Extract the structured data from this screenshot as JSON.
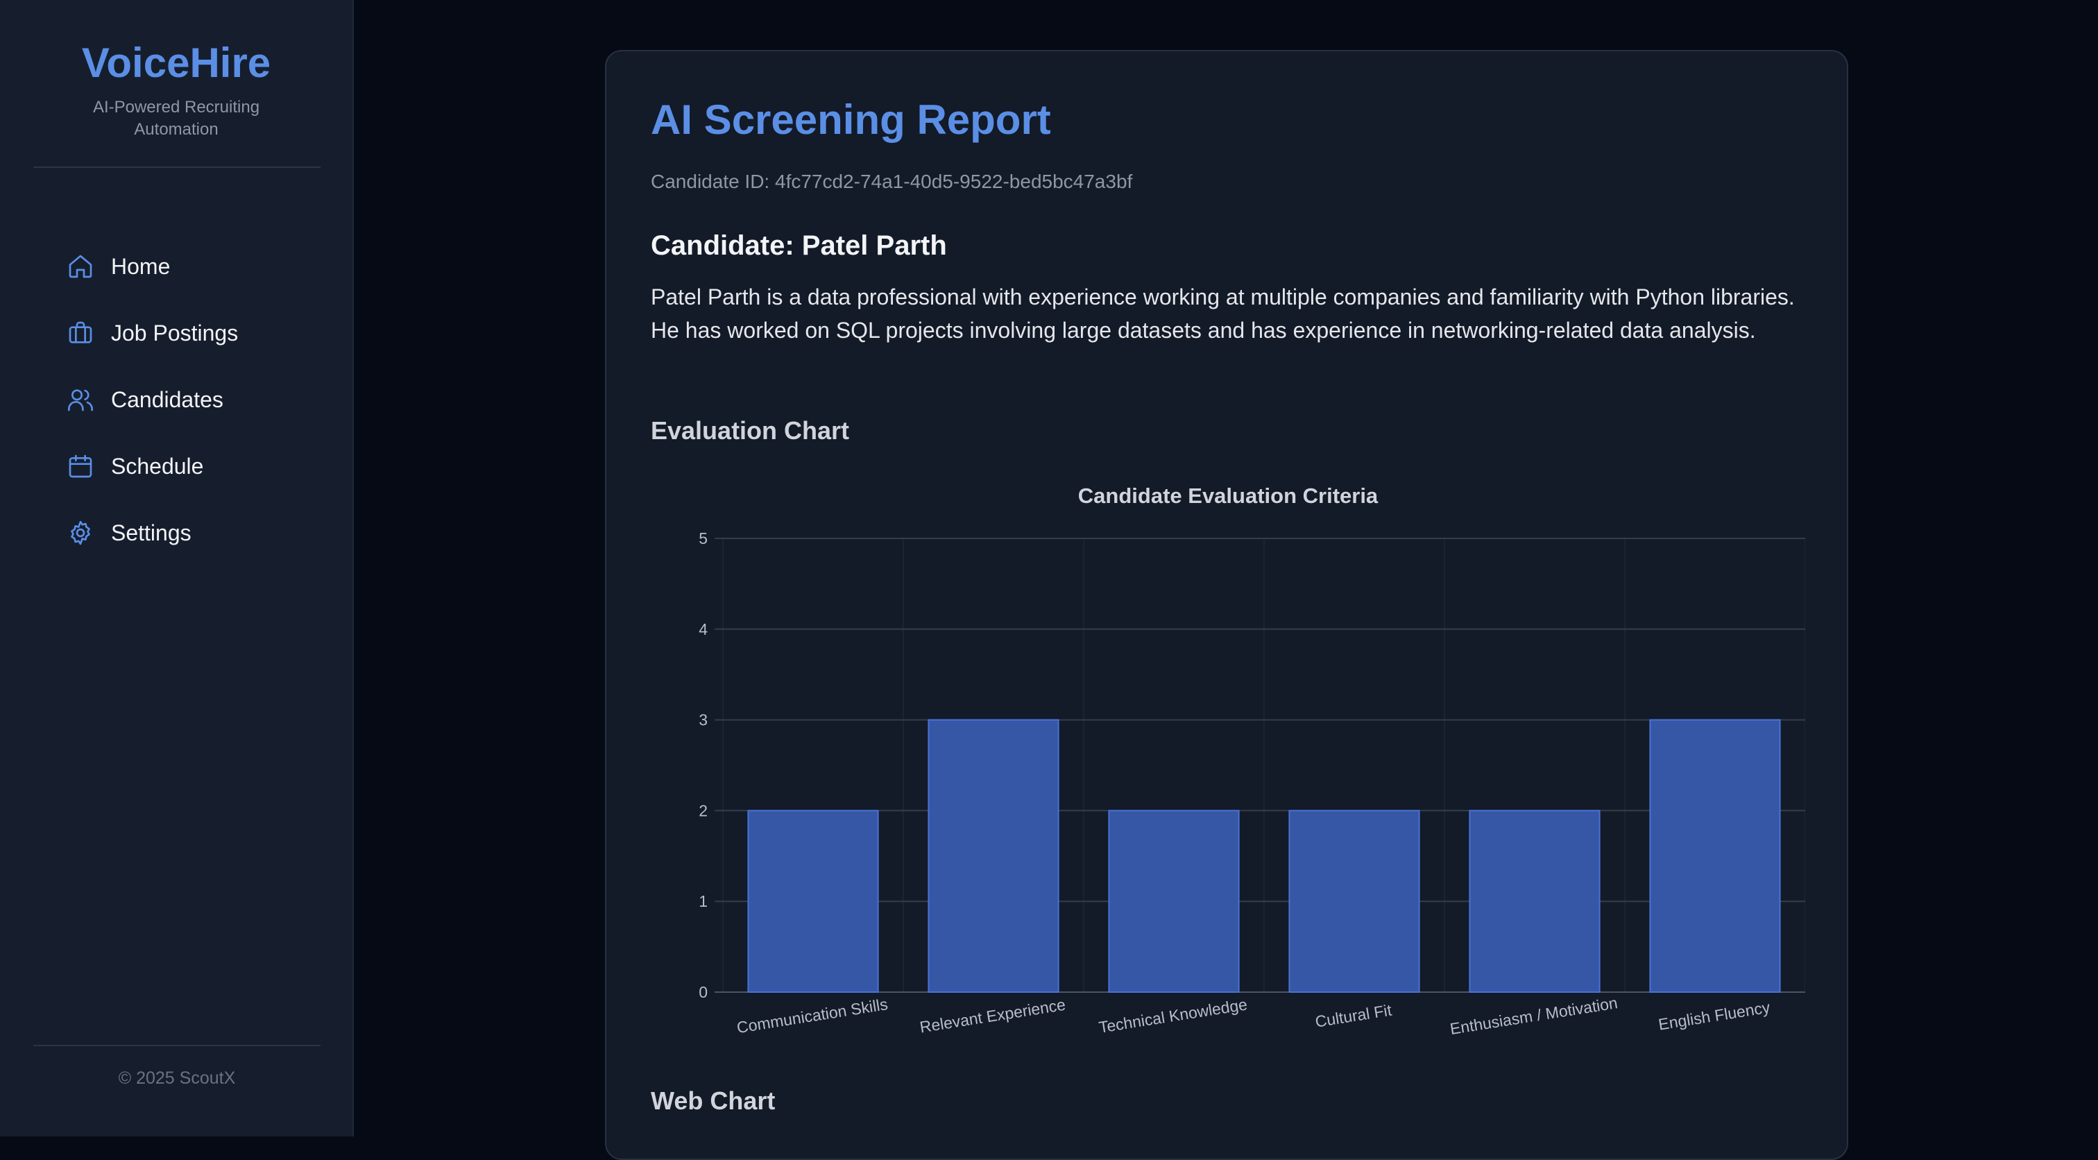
{
  "sidebar": {
    "brand": "VoiceHire",
    "tagline": "AI-Powered Recruiting Automation",
    "items": [
      {
        "label": "Home",
        "icon": "home-icon"
      },
      {
        "label": "Job Postings",
        "icon": "briefcase-icon"
      },
      {
        "label": "Candidates",
        "icon": "users-icon"
      },
      {
        "label": "Schedule",
        "icon": "calendar-icon"
      },
      {
        "label": "Settings",
        "icon": "gear-icon"
      }
    ],
    "footer": "© 2025 ScoutX"
  },
  "report": {
    "title": "AI Screening Report",
    "candidate_id": "Candidate ID: 4fc77cd2-74a1-40d5-9522-bed5bc47a3bf",
    "candidate_name": "Candidate: Patel Parth",
    "summary": "Patel Parth is a data professional with experience working at multiple companies and familiarity with Python libraries. He has worked on SQL projects involving large datasets and has experience in networking-related data analysis.",
    "evaluation_heading": "Evaluation Chart",
    "web_heading": "Web Chart"
  },
  "colors": {
    "accent": "#5b8fe6",
    "bar_fill": "#3557a5",
    "bar_stroke": "#4a72d4"
  },
  "chart_data": {
    "type": "bar",
    "title": "Candidate Evaluation Criteria",
    "categories": [
      "Communication Skills",
      "Relevant Experience",
      "Technical Knowledge",
      "Cultural Fit",
      "Enthusiasm / Motivation",
      "English Fluency"
    ],
    "values": [
      2,
      3,
      2,
      2,
      2,
      3
    ],
    "ylim": [
      0,
      5
    ],
    "yticks": [
      0,
      1,
      2,
      3,
      4,
      5
    ],
    "grid": true,
    "legend": "none"
  }
}
